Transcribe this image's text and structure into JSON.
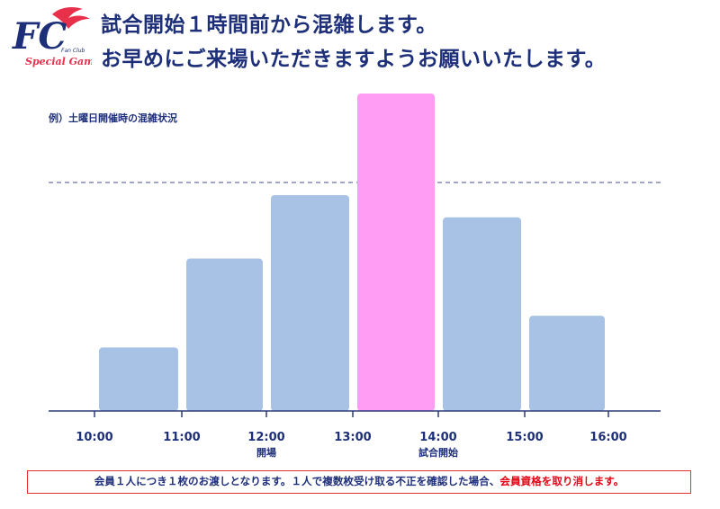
{
  "logo": {
    "letters": "FC",
    "small_text": "Fan Club",
    "tagline": "Special Game",
    "colors": {
      "letters": "#1e2f7a",
      "flame": "#e8304a"
    }
  },
  "header": {
    "line1": "試合開始１時間前から混雑します。",
    "line2": "お早めにご来場いただきますようお願いいたします。"
  },
  "chart_data": {
    "type": "bar",
    "title": "例）土曜日開催時の混雑状況",
    "x_ticks": [
      "10:00",
      "11:00",
      "12:00",
      "13:00",
      "14:00",
      "15:00",
      "16:00"
    ],
    "bars": [
      {
        "start": "10:00",
        "end": "11:00",
        "value": 20,
        "highlight": false
      },
      {
        "start": "11:00",
        "end": "12:00",
        "value": 48,
        "highlight": false
      },
      {
        "start": "12:00",
        "end": "13:00",
        "value": 68,
        "highlight": false
      },
      {
        "start": "13:00",
        "end": "14:00",
        "value": 100,
        "highlight": true
      },
      {
        "start": "14:00",
        "end": "15:00",
        "value": 61,
        "highlight": false
      },
      {
        "start": "15:00",
        "end": "16:00",
        "value": 30,
        "highlight": false
      }
    ],
    "reference_line": {
      "value": 72,
      "style": "dashed"
    },
    "annotations": [
      {
        "at": "12:00",
        "text": "開場"
      },
      {
        "at": "14:00",
        "text": "試合開始"
      }
    ],
    "ylim": [
      0,
      100
    ],
    "grid": false,
    "colors": {
      "bar": "#a8c2e6",
      "highlight": "#ff9cf4",
      "axis": "#2b3a7a",
      "reference": "#6a72a8"
    }
  },
  "notice": {
    "text_main": "会員１人につき１枚のお渡しとなります。１人で複数枚受け取る不正を確認した場合、",
    "text_red": "会員資格を取り消します。"
  }
}
